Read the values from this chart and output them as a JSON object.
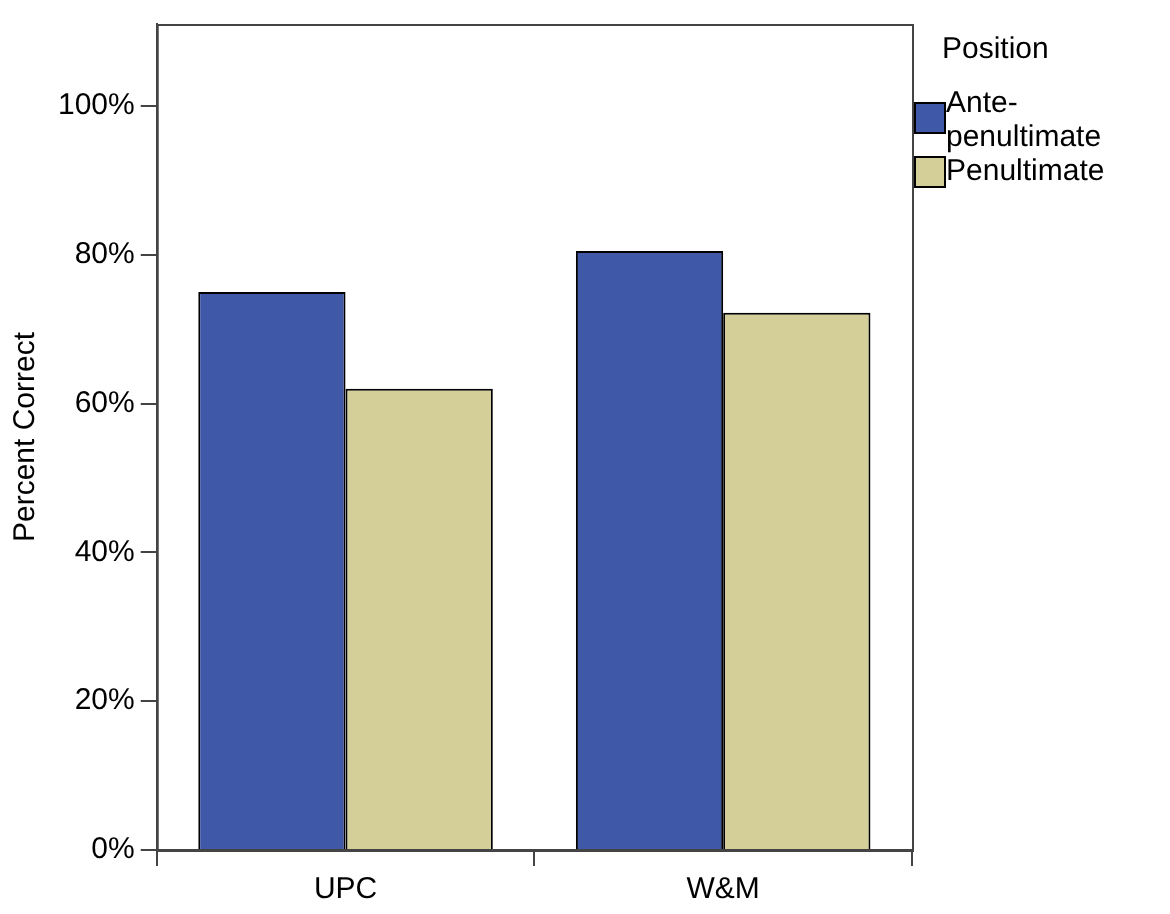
{
  "chart_data": {
    "type": "bar",
    "ylabel": "Percent Correct",
    "legend_title": "Position",
    "categories": [
      "UPC",
      "W&M"
    ],
    "series": [
      {
        "name": "Ante-penultimate",
        "color": "#3f58a8",
        "values": [
          75,
          80.5
        ]
      },
      {
        "name": "Penultimate",
        "color": "#d4cf98",
        "values": [
          62,
          72.2
        ]
      }
    ],
    "ylim": [
      0,
      111
    ],
    "yticks": [
      {
        "value": 0,
        "label": "0%"
      },
      {
        "value": 20,
        "label": "20%"
      },
      {
        "value": 40,
        "label": "40%"
      },
      {
        "value": 60,
        "label": "60%"
      },
      {
        "value": 80,
        "label": "80%"
      },
      {
        "value": 100,
        "label": "100%"
      }
    ],
    "grid": false,
    "legend": "top right"
  }
}
